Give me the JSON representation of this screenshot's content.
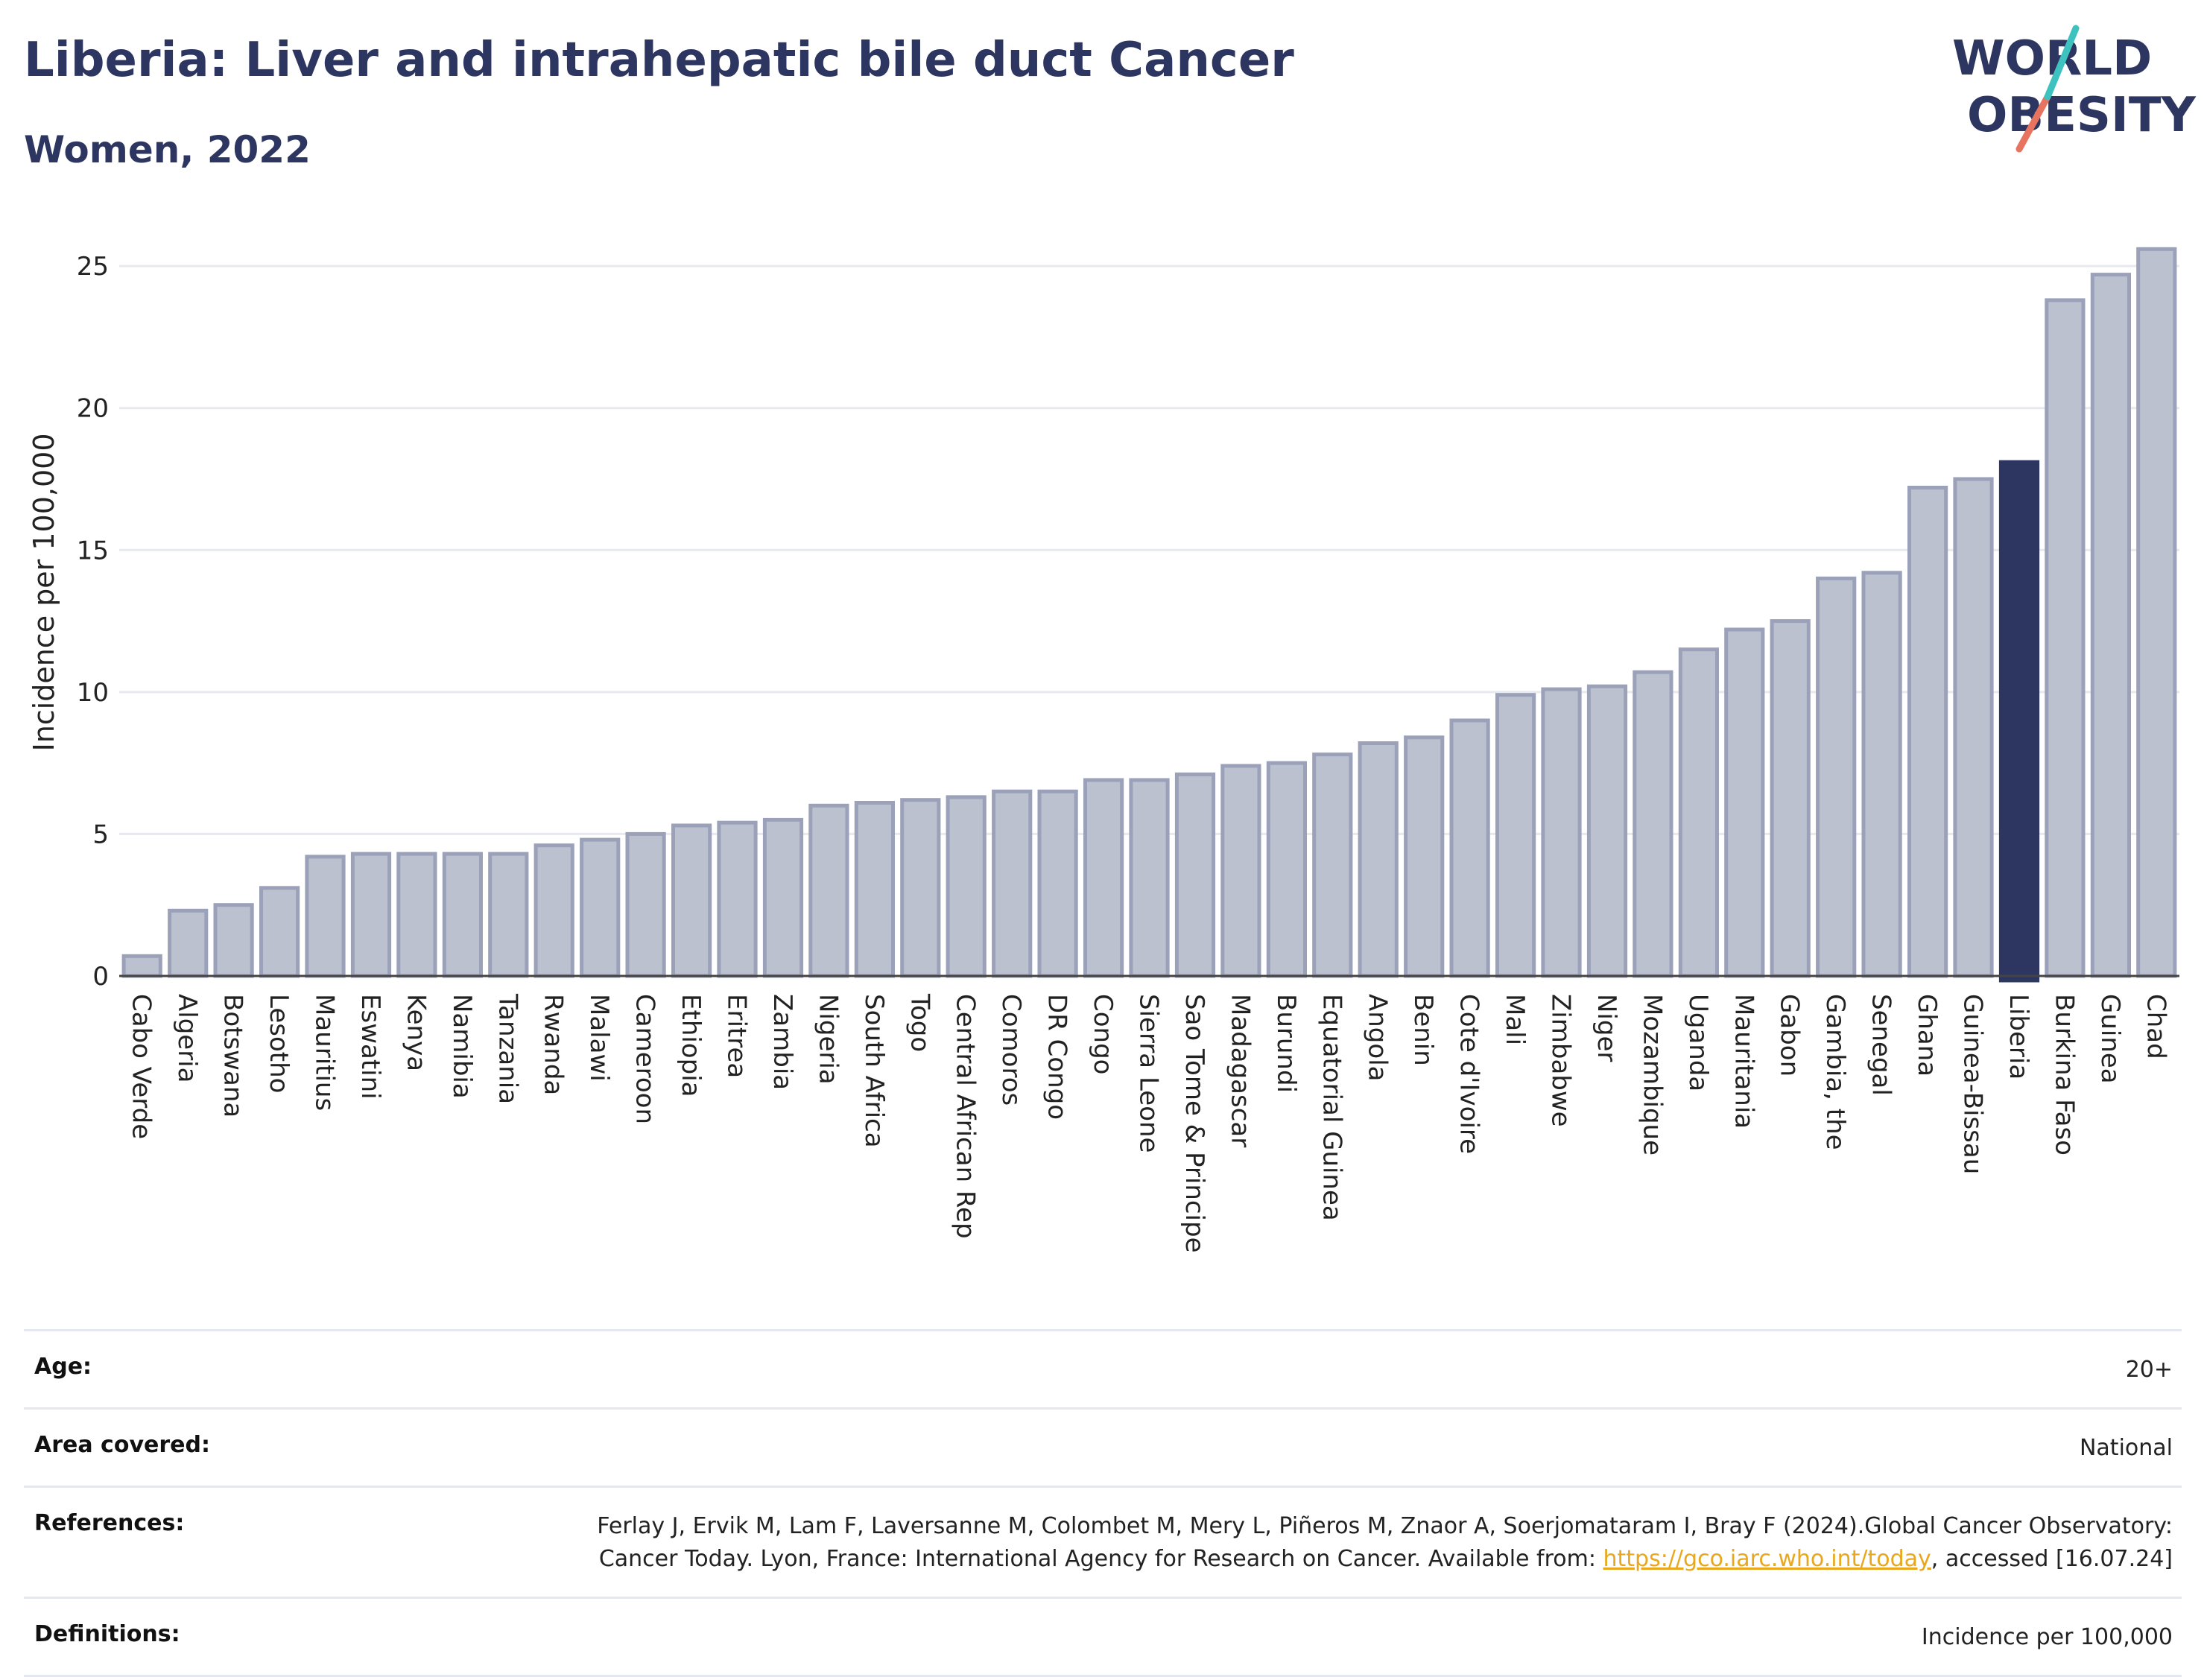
{
  "header": {
    "title": "Liberia: Liver and intrahepatic bile duct Cancer",
    "subtitle": "Women, 2022"
  },
  "logo": {
    "line1": "WORLD",
    "line2": "OBESITY",
    "icon": "world-obesity-logo"
  },
  "colors": {
    "bar_fill": "#bcc1d0",
    "bar_stroke": "#9aa1b8",
    "highlight": "#2d3660",
    "title": "#2d3660",
    "grid": "#e8e9ee",
    "link": "#e8a71c"
  },
  "chart_data": {
    "type": "bar",
    "ylabel": "Incidence per 100,000",
    "ylim": [
      0,
      26.5
    ],
    "yticks": [
      0,
      5,
      10,
      15,
      20,
      25
    ],
    "grid": true,
    "highlight": "Liberia",
    "categories": [
      "Cabo Verde",
      "Algeria",
      "Botswana",
      "Lesotho",
      "Mauritius",
      "Eswatini",
      "Kenya",
      "Namibia",
      "Tanzania",
      "Rwanda",
      "Malawi",
      "Cameroon",
      "Ethiopia",
      "Eritrea",
      "Zambia",
      "Nigeria",
      "South Africa",
      "Togo",
      "Central African Rep",
      "Comoros",
      "DR Congo",
      "Congo",
      "Sierra Leone",
      "Sao Tome & Principe",
      "Madagascar",
      "Burundi",
      "Equatorial Guinea",
      "Angola",
      "Benin",
      "Cote d'Ivoire",
      "Mali",
      "Zimbabwe",
      "Niger",
      "Mozambique",
      "Uganda",
      "Mauritania",
      "Gabon",
      "Gambia, the",
      "Senegal",
      "Ghana",
      "Guinea-Bissau",
      "Liberia",
      "Burkina Faso",
      "Guinea",
      "Chad"
    ],
    "values": [
      0.7,
      2.3,
      2.5,
      3.1,
      4.2,
      4.3,
      4.3,
      4.3,
      4.3,
      4.6,
      4.8,
      5.0,
      5.3,
      5.4,
      5.5,
      6.0,
      6.1,
      6.2,
      6.3,
      6.5,
      6.5,
      6.9,
      6.9,
      7.1,
      7.4,
      7.5,
      7.8,
      8.2,
      8.4,
      9.0,
      9.9,
      10.1,
      10.2,
      10.7,
      11.5,
      12.2,
      12.5,
      14.0,
      14.2,
      17.2,
      17.5,
      18.1,
      23.8,
      24.7,
      25.6
    ]
  },
  "info": [
    {
      "label": "Age:",
      "value": "20+"
    },
    {
      "label": "Area covered:",
      "value": "National"
    },
    {
      "label": "References:",
      "value_pre": "Ferlay J, Ervik M, Lam F, Laversanne M, Colombet M, Mery L, Piñeros M, Znaor A, Soerjomataram I, Bray F (2024).Global Cancer Observatory: Cancer Today. Lyon, France: International Agency for Research on Cancer. Available from: ",
      "link": "https://gco.iarc.who.int/today",
      "value_post": ", accessed [16.07.24]"
    },
    {
      "label": "Definitions:",
      "value": "Incidence per 100,000"
    }
  ]
}
